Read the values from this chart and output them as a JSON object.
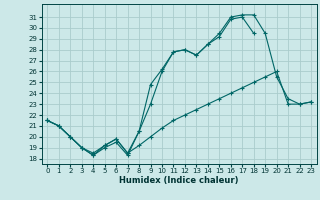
{
  "xlabel": "Humidex (Indice chaleur)",
  "xlim": [
    -0.5,
    23.5
  ],
  "ylim": [
    17.5,
    32.2
  ],
  "xticks": [
    0,
    1,
    2,
    3,
    4,
    5,
    6,
    7,
    8,
    9,
    10,
    11,
    12,
    13,
    14,
    15,
    16,
    17,
    18,
    19,
    20,
    21,
    22,
    23
  ],
  "yticks": [
    18,
    19,
    20,
    21,
    22,
    23,
    24,
    25,
    26,
    27,
    28,
    29,
    30,
    31
  ],
  "background_color": "#cce8e8",
  "grid_color": "#aacccc",
  "line_color": "#006666",
  "line1_y": [
    21.5,
    21.0,
    20.0,
    19.0,
    18.3,
    19.0,
    19.5,
    18.3,
    20.5,
    23.0,
    26.0,
    27.8,
    28.0,
    27.5,
    28.5,
    29.5,
    31.0,
    31.2,
    31.2,
    29.5,
    25.5,
    23.5,
    23.0,
    23.2
  ],
  "line2_y": [
    21.5,
    21.0,
    20.0,
    19.0,
    18.3,
    19.2,
    19.8,
    18.5,
    20.5,
    24.8,
    26.2,
    27.8,
    28.0,
    27.5,
    28.5,
    29.2,
    30.8,
    31.0,
    29.5,
    null,
    null,
    null,
    null,
    null
  ],
  "line3_y": [
    21.5,
    21.0,
    20.0,
    19.0,
    18.5,
    19.2,
    19.8,
    18.5,
    19.2,
    20.0,
    20.8,
    21.5,
    22.0,
    22.5,
    23.0,
    23.5,
    24.0,
    24.5,
    25.0,
    25.5,
    26.0,
    23.0,
    23.0,
    23.2
  ]
}
